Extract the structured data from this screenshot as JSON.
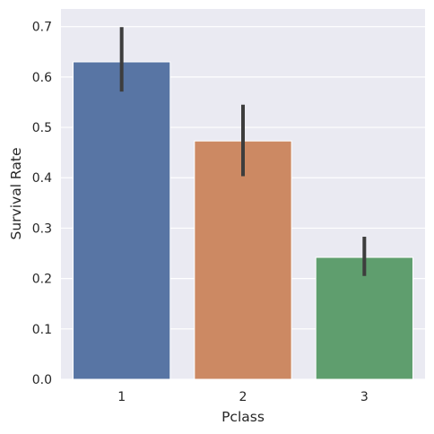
{
  "chart_data": {
    "type": "bar",
    "title": "",
    "xlabel": "Pclass",
    "ylabel": "Survival Rate",
    "categories": [
      "1",
      "2",
      "3"
    ],
    "values": [
      0.63,
      0.473,
      0.242
    ],
    "error_bars": [
      {
        "low": 0.571,
        "high": 0.699
      },
      {
        "low": 0.403,
        "high": 0.545
      },
      {
        "low": 0.205,
        "high": 0.283
      }
    ],
    "ylim": [
      0,
      0.735
    ],
    "yticks": [
      "0.0",
      "0.1",
      "0.2",
      "0.3",
      "0.4",
      "0.5",
      "0.6",
      "0.7"
    ],
    "grid": true,
    "colors": {
      "background": "#eaeaf2",
      "grid": "#ffffff",
      "bars": [
        "#5875a4",
        "#cc8963",
        "#5f9e6e"
      ],
      "error": "#3d3d3d"
    }
  }
}
